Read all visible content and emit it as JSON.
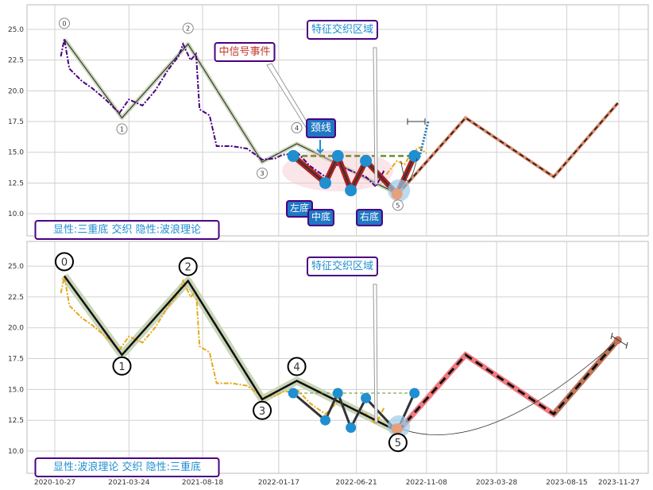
{
  "chart_data": [
    {
      "type": "line",
      "panel": "top",
      "ylim": [
        8.2,
        27.0
      ],
      "yticks": [
        "10.0",
        "12.5",
        "15.0",
        "17.5",
        "20.0",
        "22.5",
        "25.0"
      ],
      "grid": true,
      "series": [
        {
          "color": "#4b0082",
          "style": "dash-dot",
          "points": [
            [
              "2020-11-08",
              22.8
            ],
            [
              "2020-11-15",
              24.2
            ],
            [
              "2020-11-25",
              21.8
            ],
            [
              "2020-12-20",
              20.8
            ],
            [
              "2021-01-10",
              20.2
            ],
            [
              "2021-02-05",
              19.3
            ],
            [
              "2021-03-05",
              18.2
            ],
            [
              "2021-03-24",
              19.3
            ],
            [
              "2021-04-20",
              18.8
            ],
            [
              "2021-05-15",
              20.0
            ],
            [
              "2021-06-10",
              21.7
            ],
            [
              "2021-07-01",
              22.8
            ],
            [
              "2021-07-10",
              23.8
            ],
            [
              "2021-07-25",
              22.5
            ],
            [
              "2021-08-05",
              23.0
            ],
            [
              "2021-08-12",
              18.5
            ],
            [
              "2021-09-01",
              18.0
            ],
            [
              "2021-09-15",
              15.5
            ],
            [
              "2021-10-15",
              15.5
            ],
            [
              "2021-11-15",
              15.3
            ],
            [
              "2021-12-15",
              14.4
            ],
            [
              "2022-01-10",
              14.5
            ],
            [
              "2022-01-25",
              14.8
            ],
            [
              "2022-02-25",
              14.9
            ],
            [
              "2022-03-20",
              13.9
            ],
            [
              "2022-04-20",
              13.0
            ],
            [
              "2022-05-15",
              14.0
            ],
            [
              "2022-06-10",
              13.5
            ],
            [
              "2022-07-10",
              13.0
            ],
            [
              "2022-07-30",
              12.2
            ],
            [
              "2022-08-15",
              13.5
            ]
          ]
        },
        {
          "color": "#e6a817",
          "style": "dash-dot",
          "points": [
            [
              "2022-08-20",
              13.2
            ],
            [
              "2022-09-10",
              14.3
            ],
            [
              "2022-09-25",
              14.0
            ],
            [
              "2022-10-10",
              15.0
            ],
            [
              "2022-10-25",
              15.4
            ],
            [
              "2022-11-08",
              14.9
            ]
          ]
        },
        {
          "color": "#1f77b4",
          "style": "dotted",
          "points": [
            [
              "2022-10-25",
              14.6
            ],
            [
              "2022-11-12",
              17.6
            ]
          ]
        }
      ],
      "wave_labels": [
        {
          "label": "0",
          "x": "2020-11-15",
          "y": 24.2
        },
        {
          "label": "1",
          "x": "2021-03-10",
          "y": 17.8
        },
        {
          "label": "2",
          "x": "2021-07-20",
          "y": 23.8
        },
        {
          "label": "3",
          "x": "2021-12-15",
          "y": 14.2
        },
        {
          "label": "4",
          "x": "2022-02-22",
          "y": 15.7
        },
        {
          "label": "5",
          "x": "2022-09-12",
          "y": 11.6
        }
      ],
      "projection": [
        [
          "2022-09-12",
          11.6
        ],
        [
          "2023-01-25",
          17.8
        ],
        [
          "2023-07-20",
          13.0
        ],
        [
          "2023-11-25",
          19.0
        ]
      ],
      "neckline": [
        [
          "2022-02-15",
          14.7
        ],
        [
          "2022-10-15",
          14.7
        ]
      ],
      "labels": {
        "signal": "中信号事件",
        "zone": "特征交织区域",
        "neckline": "颈线",
        "left_bottom": "左底",
        "mid_bottom": "中底",
        "right_bottom": "右底",
        "mode": "显性:三重底 交织 隐性:波浪理论"
      }
    },
    {
      "type": "line",
      "panel": "bottom",
      "ylim": [
        8.2,
        27.0
      ],
      "yticks": [
        "10.0",
        "12.5",
        "15.0",
        "17.5",
        "20.0",
        "22.5",
        "25.0"
      ],
      "xticks": [
        "2020-10-27",
        "2021-03-24",
        "2021-08-18",
        "2022-01-17",
        "2022-06-21",
        "2022-11-08",
        "2023-03-28",
        "2023-08-15",
        "2023-11-27"
      ],
      "grid": true,
      "series": [
        {
          "color": "#e6a817",
          "style": "dash-dot",
          "points": [
            [
              "2020-11-08",
              22.8
            ],
            [
              "2020-11-15",
              24.2
            ],
            [
              "2020-11-25",
              21.8
            ],
            [
              "2020-12-20",
              20.8
            ],
            [
              "2021-01-10",
              20.2
            ],
            [
              "2021-02-05",
              19.3
            ],
            [
              "2021-03-05",
              18.2
            ],
            [
              "2021-03-24",
              19.3
            ],
            [
              "2021-04-20",
              18.8
            ],
            [
              "2021-05-15",
              20.0
            ],
            [
              "2021-06-10",
              21.7
            ],
            [
              "2021-07-01",
              22.8
            ],
            [
              "2021-07-10",
              23.8
            ],
            [
              "2021-07-25",
              22.5
            ],
            [
              "2021-08-05",
              23.0
            ],
            [
              "2021-08-12",
              18.5
            ],
            [
              "2021-09-01",
              18.0
            ],
            [
              "2021-09-15",
              15.5
            ],
            [
              "2021-10-15",
              15.5
            ],
            [
              "2021-11-15",
              15.3
            ],
            [
              "2021-12-15",
              14.4
            ],
            [
              "2022-01-10",
              14.5
            ],
            [
              "2022-01-25",
              14.8
            ],
            [
              "2022-02-25",
              14.9
            ],
            [
              "2022-03-20",
              13.9
            ],
            [
              "2022-04-20",
              13.0
            ],
            [
              "2022-05-15",
              14.0
            ],
            [
              "2022-06-10",
              13.5
            ],
            [
              "2022-07-10",
              13.0
            ],
            [
              "2022-07-30",
              12.2
            ],
            [
              "2022-08-15",
              13.5
            ]
          ]
        }
      ],
      "wave_labels": [
        {
          "label": "0",
          "x": "2020-11-15",
          "y": 24.2
        },
        {
          "label": "1",
          "x": "2021-03-10",
          "y": 17.8
        },
        {
          "label": "2",
          "x": "2021-07-20",
          "y": 23.8
        },
        {
          "label": "3",
          "x": "2021-12-15",
          "y": 14.2
        },
        {
          "label": "4",
          "x": "2022-02-22",
          "y": 15.7
        },
        {
          "label": "5",
          "x": "2022-09-12",
          "y": 11.6
        }
      ],
      "projection": [
        [
          "2022-09-12",
          11.6
        ],
        [
          "2023-01-25",
          17.8
        ],
        [
          "2023-07-20",
          13.0
        ],
        [
          "2023-11-25",
          19.0
        ]
      ],
      "neckline": [
        [
          "2022-02-15",
          14.7
        ],
        [
          "2022-10-15",
          14.7
        ]
      ],
      "labels": {
        "zone": "特征交织区域",
        "mode": "显性:波浪理论 交织 隐性:三重底"
      }
    }
  ],
  "colors": {
    "grid": "#d0d0d0",
    "axes_edge": "#bbbbbb",
    "band_olive": "#c9d6b8",
    "bottoms_red": "#b22222",
    "marker_blue": "#1f8fd0",
    "projection_orange": "#e08a6a",
    "projection_pink": "#f07a80",
    "box_border": "#4b0082",
    "box_text": "#1f8fd0",
    "signal_text": "#c0392b",
    "callout_fill": "#1f77c4"
  }
}
